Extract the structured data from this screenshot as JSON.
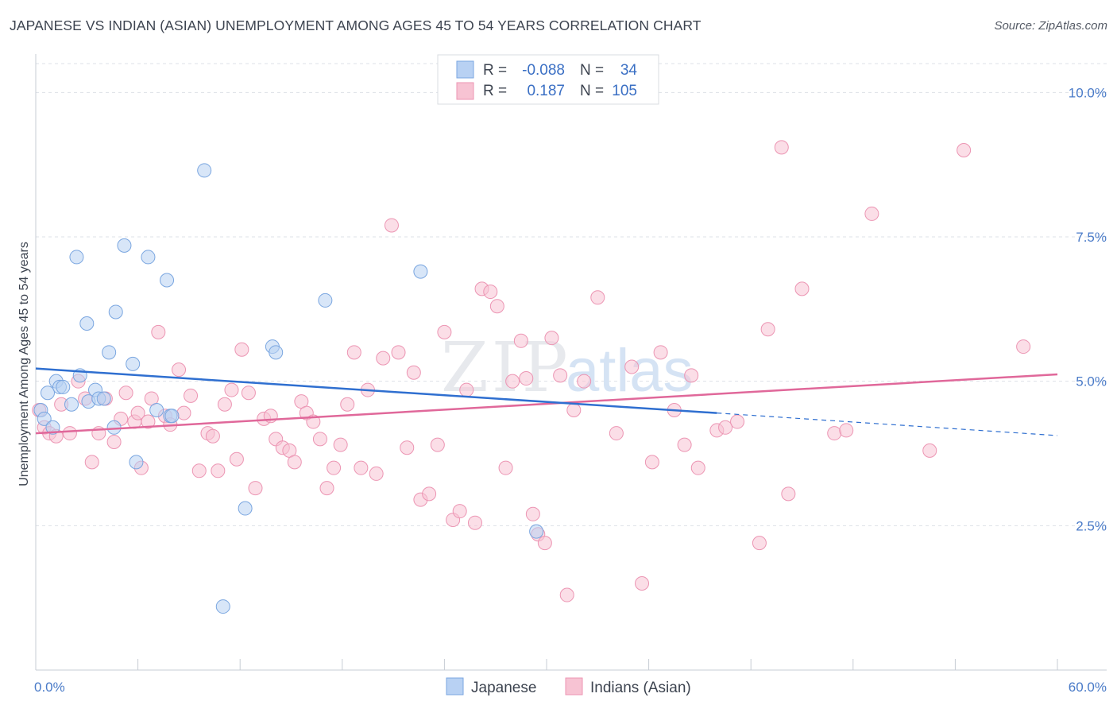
{
  "header": {
    "title": "JAPANESE VS INDIAN (ASIAN) UNEMPLOYMENT AMONG AGES 45 TO 54 YEARS CORRELATION CHART",
    "source": "Source: ZipAtlas.com"
  },
  "watermark": {
    "part1": "ZIP",
    "part2": "atlas"
  },
  "colors": {
    "japanese_fill": "#b8d1f3",
    "japanese_stroke": "#7aa6e0",
    "japanese_line": "#2f6fd0",
    "indian_fill": "#f7c3d3",
    "indian_stroke": "#ec95b3",
    "indian_line": "#e0689a",
    "grid": "#dde1e7",
    "tick_text": "#4a7bc8"
  },
  "legend_top": {
    "rows": [
      {
        "r_label": "R =",
        "r_value": "-0.088",
        "n_label": "N =",
        "n_value": "34"
      },
      {
        "r_label": "R =",
        "r_value": "0.187",
        "n_label": "N =",
        "n_value": "105"
      }
    ]
  },
  "legend_bottom": {
    "items": [
      "Japanese",
      "Indians (Asian)"
    ]
  },
  "chart_data": {
    "type": "scatter",
    "title": "JAPANESE VS INDIAN (ASIAN) UNEMPLOYMENT AMONG AGES 45 TO 54 YEARS CORRELATION CHART",
    "xlabel": "",
    "ylabel": "Unemployment Among Ages 45 to 54 years",
    "xlim": [
      0,
      60
    ],
    "ylim": [
      0,
      10.5
    ],
    "x_tick_labels": [
      "0.0%",
      "60.0%"
    ],
    "y_ticks": [
      2.5,
      5.0,
      7.5,
      10.0
    ],
    "y_tick_labels": [
      "2.5%",
      "5.0%",
      "7.5%",
      "10.0%"
    ],
    "grid": true,
    "series": [
      {
        "name": "Japanese",
        "r": -0.088,
        "n": 34,
        "trend": {
          "x0": 0,
          "y0": 5.22,
          "x1": 40,
          "y1": 4.45,
          "dash_to_x": 60,
          "dash_to_y": 4.06
        },
        "points": [
          [
            0.3,
            4.5
          ],
          [
            0.5,
            4.35
          ],
          [
            0.7,
            4.8
          ],
          [
            1.0,
            4.2
          ],
          [
            1.2,
            5.0
          ],
          [
            1.4,
            4.9
          ],
          [
            1.6,
            4.9
          ],
          [
            2.1,
            4.6
          ],
          [
            2.4,
            7.15
          ],
          [
            2.6,
            5.1
          ],
          [
            3.0,
            6.0
          ],
          [
            3.1,
            4.65
          ],
          [
            3.5,
            4.85
          ],
          [
            3.7,
            4.7
          ],
          [
            4.0,
            4.7
          ],
          [
            4.3,
            5.5
          ],
          [
            4.6,
            4.2
          ],
          [
            4.7,
            6.2
          ],
          [
            5.2,
            7.35
          ],
          [
            5.7,
            5.3
          ],
          [
            5.9,
            3.6
          ],
          [
            6.6,
            7.15
          ],
          [
            7.1,
            4.5
          ],
          [
            7.7,
            6.75
          ],
          [
            7.9,
            4.4
          ],
          [
            8.0,
            4.4
          ],
          [
            9.9,
            8.65
          ],
          [
            11.0,
            1.1
          ],
          [
            12.3,
            2.8
          ],
          [
            13.9,
            5.6
          ],
          [
            14.1,
            5.5
          ],
          [
            17.0,
            6.4
          ],
          [
            22.6,
            6.9
          ],
          [
            29.4,
            2.4
          ]
        ]
      },
      {
        "name": "Indians (Asian)",
        "r": 0.187,
        "n": 105,
        "trend": {
          "x0": 0,
          "y0": 4.1,
          "x1": 60,
          "y1": 5.12
        },
        "points": [
          [
            0.5,
            4.2
          ],
          [
            0.8,
            4.1
          ],
          [
            1.2,
            4.05
          ],
          [
            1.5,
            4.6
          ],
          [
            2.0,
            4.1
          ],
          [
            2.5,
            5.0
          ],
          [
            2.9,
            4.7
          ],
          [
            3.3,
            3.6
          ],
          [
            3.7,
            4.1
          ],
          [
            4.1,
            4.7
          ],
          [
            4.6,
            3.95
          ],
          [
            5.0,
            4.35
          ],
          [
            5.3,
            4.8
          ],
          [
            5.8,
            4.3
          ],
          [
            6.0,
            4.45
          ],
          [
            6.2,
            3.5
          ],
          [
            6.6,
            4.3
          ],
          [
            6.8,
            4.7
          ],
          [
            7.2,
            5.85
          ],
          [
            7.6,
            4.4
          ],
          [
            7.9,
            4.25
          ],
          [
            8.4,
            5.2
          ],
          [
            8.7,
            4.45
          ],
          [
            9.1,
            4.75
          ],
          [
            9.6,
            3.45
          ],
          [
            10.1,
            4.1
          ],
          [
            10.4,
            4.05
          ],
          [
            10.7,
            3.45
          ],
          [
            11.1,
            4.6
          ],
          [
            11.5,
            4.85
          ],
          [
            11.8,
            3.65
          ],
          [
            12.1,
            5.55
          ],
          [
            12.5,
            4.8
          ],
          [
            12.9,
            3.15
          ],
          [
            13.4,
            4.35
          ],
          [
            13.8,
            4.4
          ],
          [
            14.1,
            4.0
          ],
          [
            14.5,
            3.85
          ],
          [
            14.9,
            3.8
          ],
          [
            15.2,
            3.6
          ],
          [
            15.6,
            4.65
          ],
          [
            15.9,
            4.45
          ],
          [
            16.3,
            4.3
          ],
          [
            16.7,
            4.0
          ],
          [
            17.1,
            3.15
          ],
          [
            17.5,
            3.5
          ],
          [
            17.9,
            3.9
          ],
          [
            18.3,
            4.6
          ],
          [
            18.7,
            5.5
          ],
          [
            19.1,
            3.5
          ],
          [
            19.5,
            4.85
          ],
          [
            20.0,
            3.4
          ],
          [
            20.4,
            5.4
          ],
          [
            20.9,
            7.7
          ],
          [
            21.3,
            5.5
          ],
          [
            21.8,
            3.85
          ],
          [
            22.2,
            5.15
          ],
          [
            22.6,
            2.95
          ],
          [
            23.1,
            3.05
          ],
          [
            23.6,
            3.9
          ],
          [
            24.0,
            5.85
          ],
          [
            24.5,
            2.6
          ],
          [
            24.9,
            2.75
          ],
          [
            25.3,
            4.85
          ],
          [
            25.8,
            2.55
          ],
          [
            26.2,
            6.6
          ],
          [
            26.7,
            6.55
          ],
          [
            27.1,
            6.3
          ],
          [
            27.6,
            3.5
          ],
          [
            28.0,
            5.0
          ],
          [
            28.5,
            5.7
          ],
          [
            28.8,
            5.05
          ],
          [
            29.2,
            2.7
          ],
          [
            29.5,
            2.35
          ],
          [
            29.9,
            2.2
          ],
          [
            30.3,
            5.75
          ],
          [
            30.8,
            5.1
          ],
          [
            31.2,
            1.3
          ],
          [
            31.6,
            4.5
          ],
          [
            32.2,
            5.0
          ],
          [
            33.0,
            6.45
          ],
          [
            34.1,
            4.1
          ],
          [
            35.0,
            5.25
          ],
          [
            35.6,
            1.5
          ],
          [
            36.2,
            3.6
          ],
          [
            36.7,
            5.5
          ],
          [
            37.5,
            4.5
          ],
          [
            38.1,
            3.9
          ],
          [
            38.5,
            5.1
          ],
          [
            38.9,
            3.5
          ],
          [
            40.0,
            4.15
          ],
          [
            40.5,
            4.2
          ],
          [
            41.2,
            4.3
          ],
          [
            42.5,
            2.2
          ],
          [
            43.0,
            5.9
          ],
          [
            43.8,
            9.05
          ],
          [
            44.2,
            3.05
          ],
          [
            45.0,
            6.6
          ],
          [
            46.9,
            4.1
          ],
          [
            47.6,
            4.15
          ],
          [
            49.1,
            7.9
          ],
          [
            52.5,
            3.8
          ],
          [
            54.5,
            9.0
          ],
          [
            58.0,
            5.6
          ],
          [
            0.2,
            4.5
          ]
        ]
      }
    ]
  }
}
